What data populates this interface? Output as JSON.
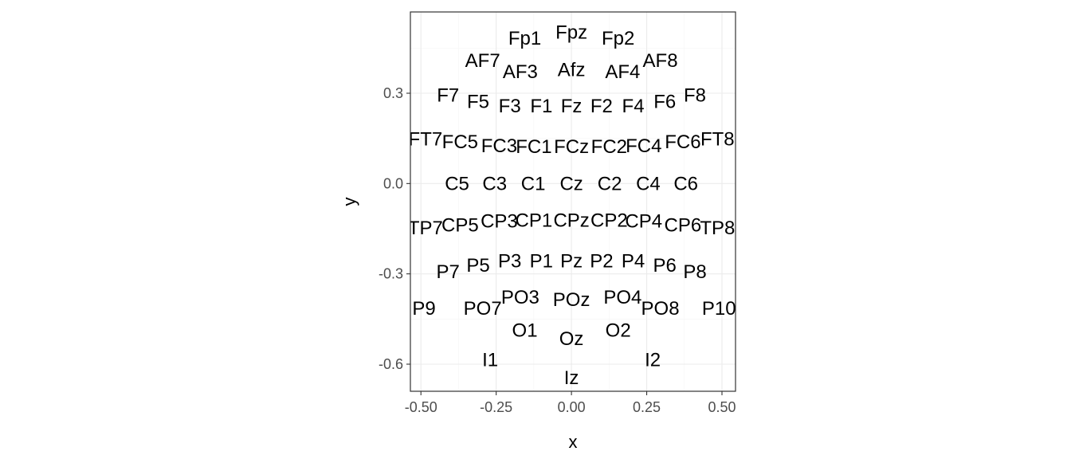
{
  "chart_data": {
    "type": "scatter",
    "title": "",
    "xlabel": "x",
    "ylabel": "y",
    "xlim": [
      -0.535,
      0.545
    ],
    "ylim": [
      -0.69,
      0.57
    ],
    "x_ticks": [
      -0.5,
      -0.25,
      0.0,
      0.25,
      0.5
    ],
    "x_tick_labels": [
      "-0.50",
      "-0.25",
      "0.00",
      "0.25",
      "0.50"
    ],
    "y_ticks": [
      -0.6,
      -0.3,
      0.0,
      0.3
    ],
    "y_tick_labels": [
      "-0.6",
      "-0.3",
      "0.0",
      "0.3"
    ],
    "grid": true,
    "theme": "bw",
    "colors": {
      "panel_border": "#333333",
      "grid_major": "#ebebeb",
      "grid_minor": "#f5f5f5",
      "tick": "#333333",
      "tick_label": "#4d4d4d",
      "text": "#000000"
    },
    "points": [
      {
        "label": "Fpz",
        "x": 0.0,
        "y": 0.503
      },
      {
        "label": "Fp1",
        "x": -0.155,
        "y": 0.483
      },
      {
        "label": "Fp2",
        "x": 0.155,
        "y": 0.483
      },
      {
        "label": "AF7",
        "x": -0.295,
        "y": 0.408
      },
      {
        "label": "AF3",
        "x": -0.17,
        "y": 0.372
      },
      {
        "label": "Afz",
        "x": 0.0,
        "y": 0.378
      },
      {
        "label": "AF4",
        "x": 0.17,
        "y": 0.372
      },
      {
        "label": "AF8",
        "x": 0.295,
        "y": 0.408
      },
      {
        "label": "F7",
        "x": -0.41,
        "y": 0.293
      },
      {
        "label": "F5",
        "x": -0.31,
        "y": 0.272
      },
      {
        "label": "F3",
        "x": -0.205,
        "y": 0.257
      },
      {
        "label": "F1",
        "x": -0.1,
        "y": 0.257
      },
      {
        "label": "Fz",
        "x": 0.0,
        "y": 0.257
      },
      {
        "label": "F2",
        "x": 0.1,
        "y": 0.257
      },
      {
        "label": "F4",
        "x": 0.205,
        "y": 0.257
      },
      {
        "label": "F6",
        "x": 0.31,
        "y": 0.272
      },
      {
        "label": "F8",
        "x": 0.41,
        "y": 0.293
      },
      {
        "label": "FT7",
        "x": -0.485,
        "y": 0.148
      },
      {
        "label": "FC5",
        "x": -0.37,
        "y": 0.138
      },
      {
        "label": "FC3",
        "x": -0.24,
        "y": 0.125
      },
      {
        "label": "FC1",
        "x": -0.125,
        "y": 0.122
      },
      {
        "label": "FCz",
        "x": 0.0,
        "y": 0.122
      },
      {
        "label": "FC2",
        "x": 0.125,
        "y": 0.122
      },
      {
        "label": "FC4",
        "x": 0.24,
        "y": 0.125
      },
      {
        "label": "FC6",
        "x": 0.37,
        "y": 0.138
      },
      {
        "label": "FT8",
        "x": 0.485,
        "y": 0.148
      },
      {
        "label": "C5",
        "x": -0.38,
        "y": 0.0
      },
      {
        "label": "C3",
        "x": -0.255,
        "y": 0.0
      },
      {
        "label": "C1",
        "x": -0.127,
        "y": 0.0
      },
      {
        "label": "Cz",
        "x": 0.0,
        "y": 0.0
      },
      {
        "label": "C2",
        "x": 0.127,
        "y": 0.0
      },
      {
        "label": "C4",
        "x": 0.255,
        "y": 0.0
      },
      {
        "label": "C6",
        "x": 0.38,
        "y": 0.0
      },
      {
        "label": "TP7",
        "x": -0.485,
        "y": -0.148
      },
      {
        "label": "CP5",
        "x": -0.37,
        "y": -0.138
      },
      {
        "label": "CP3",
        "x": -0.24,
        "y": -0.125
      },
      {
        "label": "CP1",
        "x": -0.125,
        "y": -0.122
      },
      {
        "label": "CPz",
        "x": 0.0,
        "y": -0.122
      },
      {
        "label": "CP2",
        "x": 0.125,
        "y": -0.122
      },
      {
        "label": "CP4",
        "x": 0.24,
        "y": -0.125
      },
      {
        "label": "CP6",
        "x": 0.37,
        "y": -0.138
      },
      {
        "label": "TP8",
        "x": 0.485,
        "y": -0.148
      },
      {
        "label": "P7",
        "x": -0.41,
        "y": -0.293
      },
      {
        "label": "P5",
        "x": -0.31,
        "y": -0.272
      },
      {
        "label": "P3",
        "x": -0.205,
        "y": -0.257
      },
      {
        "label": "P1",
        "x": -0.1,
        "y": -0.257
      },
      {
        "label": "Pz",
        "x": 0.0,
        "y": -0.257
      },
      {
        "label": "P2",
        "x": 0.1,
        "y": -0.257
      },
      {
        "label": "P4",
        "x": 0.205,
        "y": -0.257
      },
      {
        "label": "P6",
        "x": 0.31,
        "y": -0.272
      },
      {
        "label": "P8",
        "x": 0.41,
        "y": -0.293
      },
      {
        "label": "P9",
        "x": -0.49,
        "y": -0.415
      },
      {
        "label": "PO7",
        "x": -0.295,
        "y": -0.415
      },
      {
        "label": "PO3",
        "x": -0.17,
        "y": -0.378
      },
      {
        "label": "POz",
        "x": 0.0,
        "y": -0.385
      },
      {
        "label": "PO4",
        "x": 0.17,
        "y": -0.378
      },
      {
        "label": "PO8",
        "x": 0.295,
        "y": -0.415
      },
      {
        "label": "P10",
        "x": 0.49,
        "y": -0.415
      },
      {
        "label": "O1",
        "x": -0.155,
        "y": -0.488
      },
      {
        "label": "Oz",
        "x": 0.0,
        "y": -0.515
      },
      {
        "label": "O2",
        "x": 0.155,
        "y": -0.488
      },
      {
        "label": "I1",
        "x": -0.27,
        "y": -0.585
      },
      {
        "label": "I2",
        "x": 0.27,
        "y": -0.585
      },
      {
        "label": "Iz",
        "x": 0.0,
        "y": -0.645
      }
    ]
  }
}
